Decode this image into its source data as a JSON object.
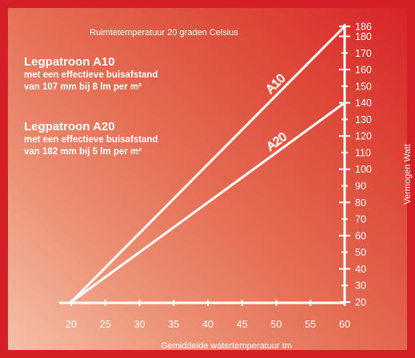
{
  "chart_data": {
    "type": "line",
    "title": "Ruimtetemperatuur 20 graden Celsius",
    "xlabel": "Gemiddelde watertemperatuur tm",
    "ylabel": "Vermogen Watt",
    "xlim": [
      20,
      60
    ],
    "ylim": [
      20,
      186
    ],
    "x_ticks": [
      "20",
      "25",
      "30",
      "35",
      "40",
      "45",
      "50",
      "55",
      "60"
    ],
    "y_ticks": [
      "20",
      "30",
      "40",
      "50",
      "60",
      "70",
      "80",
      "90",
      "100",
      "110",
      "120",
      "130",
      "140",
      "150",
      "160",
      "170",
      "180",
      "186"
    ],
    "grid": false,
    "series": [
      {
        "name": "A10",
        "x": [
          20,
          60
        ],
        "y": [
          20,
          186
        ]
      },
      {
        "name": "A20",
        "x": [
          20,
          60
        ],
        "y": [
          20,
          140
        ]
      }
    ],
    "annotations": [
      {
        "title": "Legpatroon A10",
        "lines": [
          "met een effectieve buisafstand",
          "van 107 mm bij 8 lm per m²"
        ]
      },
      {
        "title": "Legpatroon A20",
        "lines": [
          "met een effectieve buisafstand",
          "van 182 mm bij 5 lm per m²"
        ]
      }
    ],
    "colors": {
      "frame": "#d41f26",
      "lines": "#ffffff",
      "text": "#ffffff"
    }
  }
}
